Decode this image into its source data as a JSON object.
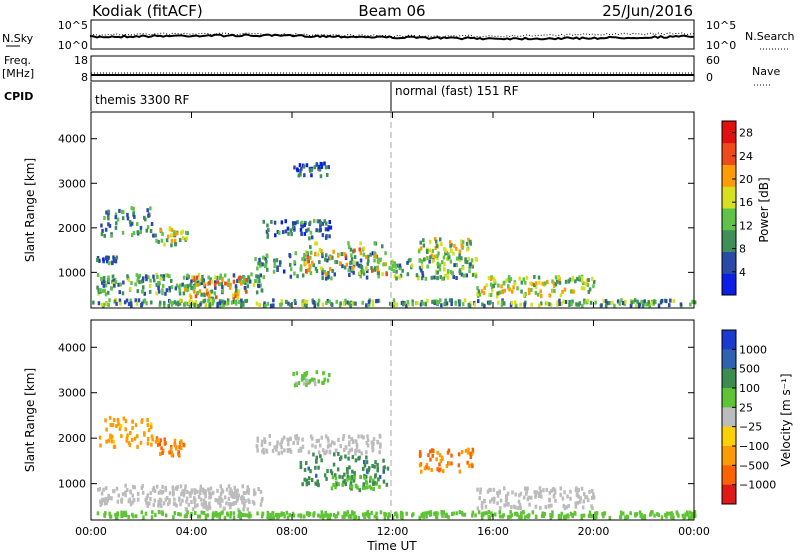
{
  "header": {
    "station": "Kodiak (fitACF)",
    "beam": "Beam 06",
    "date": "25/Jun/2016"
  },
  "strips": {
    "nsky_label": "N.Sky",
    "nsearch_label": "N.Search",
    "nsky_ticks": [
      "10^5",
      "10^0"
    ],
    "nsearch_ticks": [
      "10^5",
      "10^0"
    ],
    "freq_label_line1": "Freq.",
    "freq_label_line2": "[MHz]",
    "freq_ticks": [
      "18",
      "8"
    ],
    "nave_label": "Nave",
    "nave_ticks": [
      "60",
      "0"
    ],
    "cpid_label": "CPID",
    "cpid_modes": [
      "themis 3300 RF",
      "normal (fast) 151 RF"
    ]
  },
  "chart_data": [
    {
      "type": "heatmap",
      "name": "power",
      "ylabel": "Slant Range [km]",
      "yticks": [
        "1000",
        "2000",
        "3000",
        "4000"
      ],
      "ylim": [
        200,
        4600
      ],
      "xlim": [
        0,
        24
      ],
      "colorbar_label": "Power [dB]",
      "colorbar_ticks": [
        "4",
        "8",
        "12",
        "16",
        "20",
        "24",
        "28"
      ],
      "colorbar_range": [
        0,
        30
      ],
      "colors": [
        "#0a1ee6",
        "#2a4aa8",
        "#3e8f5a",
        "#5fc24a",
        "#d6e01e",
        "#ff9c00",
        "#f04a1a",
        "#e01010"
      ],
      "regions": [
        {
          "t": [
            0.2,
            6.8
          ],
          "r": [
            550,
            1000
          ],
          "v": 10
        },
        {
          "t": [
            3.6,
            6.2
          ],
          "r": [
            450,
            950
          ],
          "v": 17
        },
        {
          "t": [
            0.2,
            1.0
          ],
          "r": [
            1200,
            1400
          ],
          "v": 7
        },
        {
          "t": [
            0.3,
            2.5
          ],
          "r": [
            1850,
            2500
          ],
          "v": 9
        },
        {
          "t": [
            2.5,
            3.8
          ],
          "r": [
            1650,
            2050
          ],
          "v": 14
        },
        {
          "t": [
            6.5,
            11.5
          ],
          "r": [
            900,
            1500
          ],
          "v": 9
        },
        {
          "t": [
            6.8,
            9.5
          ],
          "r": [
            1800,
            2200
          ],
          "v": 7
        },
        {
          "t": [
            8.3,
            11.8
          ],
          "r": [
            1000,
            1700
          ],
          "v": 16
        },
        {
          "t": [
            11.8,
            15.3
          ],
          "r": [
            900,
            1350
          ],
          "v": 12
        },
        {
          "t": [
            13.0,
            15.2
          ],
          "r": [
            1300,
            1800
          ],
          "v": 15
        },
        {
          "t": [
            15.3,
            20.0
          ],
          "r": [
            500,
            950
          ],
          "v": 15
        },
        {
          "t": [
            8.0,
            9.5
          ],
          "r": [
            3200,
            3500
          ],
          "v": 6
        },
        {
          "t": [
            0.0,
            24.0
          ],
          "r": [
            200,
            420
          ],
          "v": 11
        }
      ]
    },
    {
      "type": "heatmap",
      "name": "velocity",
      "ylabel": "Slant Range [km]",
      "yticks": [
        "1000",
        "2000",
        "3000",
        "4000"
      ],
      "ylim": [
        200,
        4600
      ],
      "xlim": [
        0,
        24
      ],
      "xlabel": "Time UT",
      "xticks": [
        "00:00",
        "04:00",
        "08:00",
        "12:00",
        "16:00",
        "20:00",
        "00:00"
      ],
      "colorbar_label": "Velocity [m s⁻¹]",
      "colorbar_ticks": [
        "1000",
        "500",
        "100",
        "25",
        "−25",
        "−100",
        "−500",
        "−1000"
      ],
      "colors": [
        "#1a3ad0",
        "#2f62b0",
        "#3d8c4f",
        "#5ec435",
        "#bcbcbc",
        "#ffd000",
        "#ff9a00",
        "#ff6200",
        "#e01818"
      ],
      "regions": [
        {
          "t": [
            0.2,
            6.8
          ],
          "r": [
            550,
            1000
          ],
          "v": 0
        },
        {
          "t": [
            3.6,
            6.2
          ],
          "r": [
            450,
            950
          ],
          "v": 0
        },
        {
          "t": [
            0.3,
            2.5
          ],
          "r": [
            1850,
            2500
          ],
          "v": -140
        },
        {
          "t": [
            2.5,
            3.8
          ],
          "r": [
            1650,
            2050
          ],
          "v": -180
        },
        {
          "t": [
            6.5,
            11.5
          ],
          "r": [
            1700,
            2100
          ],
          "v": 0
        },
        {
          "t": [
            8.3,
            11.8
          ],
          "r": [
            1000,
            1700
          ],
          "v": 160
        },
        {
          "t": [
            9.5,
            11.5
          ],
          "r": [
            900,
            1200
          ],
          "v": 90
        },
        {
          "t": [
            13.0,
            15.2
          ],
          "r": [
            1300,
            1800
          ],
          "v": -200
        },
        {
          "t": [
            15.3,
            20.0
          ],
          "r": [
            500,
            950
          ],
          "v": 0
        },
        {
          "t": [
            8.0,
            9.5
          ],
          "r": [
            3200,
            3500
          ],
          "v": 30
        },
        {
          "t": [
            0.0,
            24.0
          ],
          "r": [
            200,
            420
          ],
          "v": 60
        }
      ]
    }
  ]
}
